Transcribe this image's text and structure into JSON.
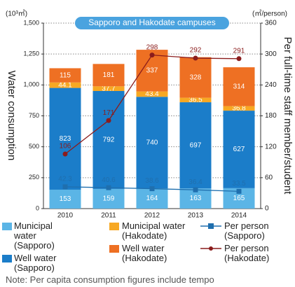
{
  "chart_data": {
    "type": "bar",
    "subtitle": "Sapporo and Hakodate campuses",
    "y_unit": "(10³㎥)",
    "y2_unit": "(㎥/person)",
    "y_label": "Water consumption",
    "y2_label": "Per full-time staff member/student",
    "categories": [
      "2010",
      "2011",
      "2012",
      "2013",
      "2014"
    ],
    "ylim": [
      0,
      1500
    ],
    "yticks": [
      0,
      250,
      500,
      750,
      {
        "value": 1000,
        "label": "1,000"
      },
      {
        "value": 1250,
        "label": "1,250"
      },
      {
        "value": 1500,
        "label": "1,500"
      }
    ],
    "y2lim": [
      0,
      360
    ],
    "y2ticks": [
      0,
      60,
      120,
      180,
      240,
      300,
      360
    ],
    "grid": true,
    "series": [
      {
        "name": "Municipal water (Sapporo)",
        "type": "bar",
        "color": "#5bb5e6",
        "values": [
          153,
          159,
          164,
          163,
          165
        ]
      },
      {
        "name": "Well water (Sapporo)",
        "type": "bar",
        "color": "#1b7dc9",
        "values": [
          823,
          792,
          740,
          697,
          627
        ]
      },
      {
        "name": "Municipal water (Hakodate)",
        "type": "bar",
        "color": "#f7a823",
        "values": [
          44.1,
          37.7,
          43.4,
          36.5,
          36.8
        ]
      },
      {
        "name": "Well water (Hakodate)",
        "type": "bar",
        "color": "#ee7023",
        "values": [
          115,
          181,
          337,
          328,
          314
        ]
      },
      {
        "name": "Per person (Sapporo)",
        "type": "line",
        "axis": "y2",
        "color": "#1f6fae",
        "values": [
          42.3,
          40.6,
          38.6,
          36.4,
          33.5
        ]
      },
      {
        "name": "Per person (Hakodate)",
        "type": "line",
        "axis": "y2",
        "color": "#8a1c1c",
        "values": [
          106,
          171,
          298,
          292,
          291
        ]
      }
    ],
    "note": "Note: Per capita consumption figures include tempo"
  }
}
